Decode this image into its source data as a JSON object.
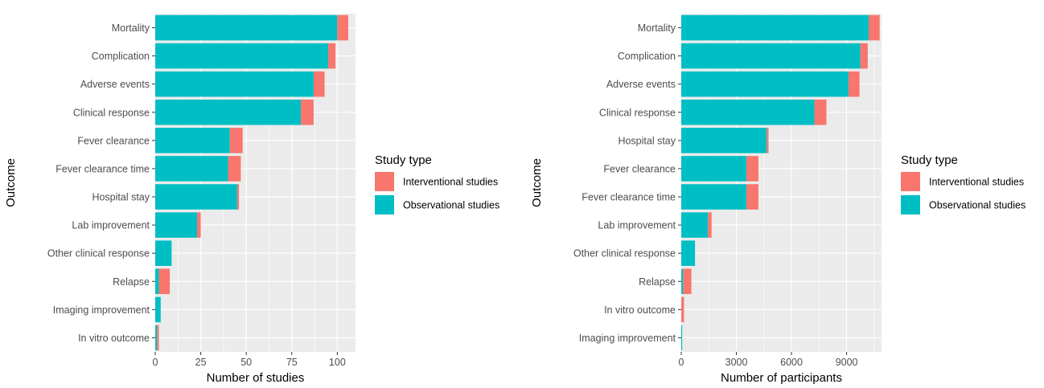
{
  "colors": {
    "interventional": "#F8766D",
    "observational": "#00BFC4",
    "panel_bg": "#EBEBEB",
    "grid": "#FFFFFF",
    "text": "#4D4D4D",
    "title_text": "#000000"
  },
  "chart_data": [
    {
      "type": "bar",
      "orientation": "horizontal",
      "stacked": true,
      "xlabel": "Number of studies",
      "ylabel": "Outcome",
      "xlim": [
        0,
        110
      ],
      "xticks": [
        "0",
        "25",
        "50",
        "75",
        "100"
      ],
      "xtick_values": [
        0,
        25,
        50,
        75,
        100
      ],
      "grid": true,
      "legend": {
        "title": "Study type",
        "position": "right",
        "entries": [
          "Interventional studies",
          "Observational studies"
        ]
      },
      "categories": [
        "Mortality",
        "Complication",
        "Adverse events",
        "Clinical response",
        "Fever clearance",
        "Fever clearance time",
        "Hospital stay",
        "Lab improvement",
        "Other clinical response",
        "Relapse",
        "Imaging improvement",
        "In vitro outcome"
      ],
      "series": [
        {
          "name": "Observational studies",
          "values": [
            100,
            95,
            87,
            80,
            41,
            40,
            45,
            23,
            9,
            2,
            3,
            1
          ]
        },
        {
          "name": "Interventional studies",
          "values": [
            6,
            4,
            6,
            7,
            7,
            7,
            1,
            2,
            0,
            6,
            0,
            1
          ]
        }
      ]
    },
    {
      "type": "bar",
      "orientation": "horizontal",
      "stacked": true,
      "xlabel": "Number of participants",
      "ylabel": "Outcome",
      "xlim": [
        0,
        10900
      ],
      "xticks": [
        "0",
        "3000",
        "6000",
        "9000"
      ],
      "xtick_values": [
        0,
        3000,
        6000,
        9000
      ],
      "grid": true,
      "legend": {
        "title": "Study type",
        "position": "right",
        "entries": [
          "Interventional studies",
          "Observational studies"
        ]
      },
      "categories": [
        "Mortality",
        "Complication",
        "Adverse events",
        "Clinical response",
        "Hospital stay",
        "Fever clearance",
        "Fever clearance time",
        "Lab improvement",
        "Other clinical response",
        "Relapse",
        "In vitro outcome",
        "Imaging improvement"
      ],
      "series": [
        {
          "name": "Observational studies",
          "values": [
            10200,
            9750,
            9100,
            7250,
            4650,
            3550,
            3550,
            1450,
            750,
            100,
            0,
            50
          ]
        },
        {
          "name": "Interventional studies",
          "values": [
            600,
            400,
            600,
            650,
            100,
            650,
            650,
            200,
            0,
            450,
            150,
            0
          ]
        }
      ]
    }
  ]
}
